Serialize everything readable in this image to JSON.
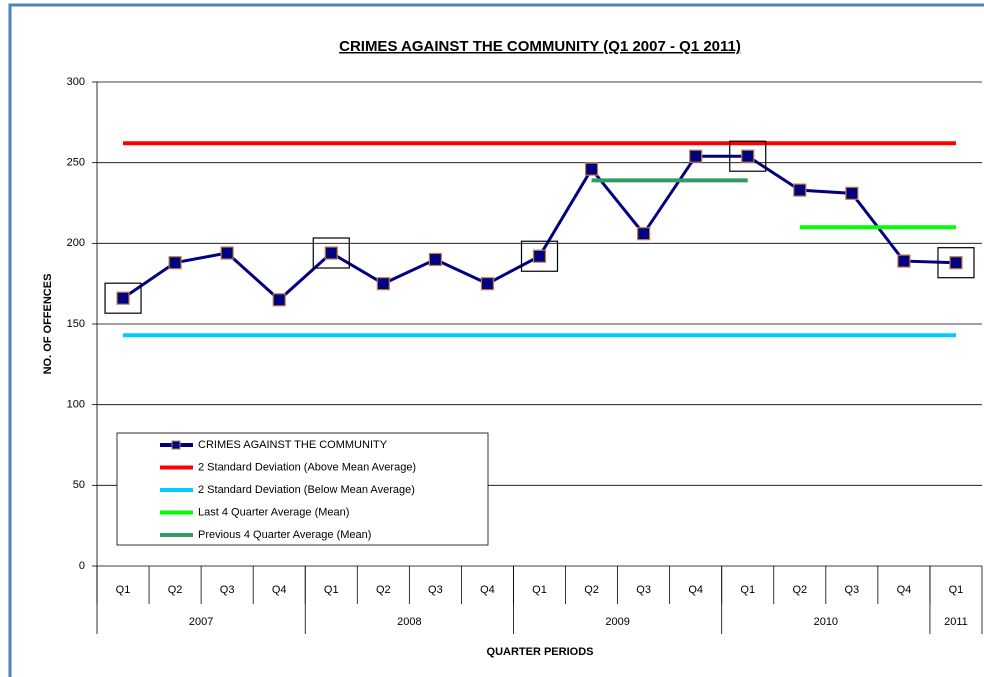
{
  "chart_data": {
    "type": "line",
    "title": "CRIMES AGAINST THE COMMUNITY (Q1 2007 - Q1 2011)",
    "y_label": "NO. OF OFFENCES",
    "x_label": "QUARTER PERIODS",
    "categories": [
      "Q1",
      "Q2",
      "Q3",
      "Q4",
      "Q1",
      "Q2",
      "Q3",
      "Q4",
      "Q1",
      "Q2",
      "Q3",
      "Q4",
      "Q1",
      "Q2",
      "Q3",
      "Q4",
      "Q1"
    ],
    "year_groups": [
      {
        "label": "2007",
        "span": 4
      },
      {
        "label": "2008",
        "span": 4
      },
      {
        "label": "2009",
        "span": 4
      },
      {
        "label": "2010",
        "span": 4
      },
      {
        "label": "2011",
        "span": 1
      }
    ],
    "series": [
      {
        "name": "CRIMES AGAINST THE COMMUNITY",
        "color": "#000080",
        "marker": true,
        "values": [
          166,
          188,
          194,
          165,
          194,
          175,
          190,
          175,
          192,
          246,
          206,
          254,
          254,
          233,
          231,
          189,
          188
        ]
      },
      {
        "name": "2 Standard Deviation (Above Mean Average)",
        "color": "#ff0000",
        "values": [
          262,
          262,
          262,
          262,
          262,
          262,
          262,
          262,
          262,
          262,
          262,
          262,
          262,
          262,
          262,
          262,
          262
        ]
      },
      {
        "name": "2 Standard Deviation (Below Mean Average)",
        "color": "#00ccff",
        "values": [
          143,
          143,
          143,
          143,
          143,
          143,
          143,
          143,
          143,
          143,
          143,
          143,
          143,
          143,
          143,
          143,
          143
        ]
      },
      {
        "name": "Last 4 Quarter Average (Mean)",
        "color": "#00ff00",
        "values": [
          null,
          null,
          null,
          null,
          null,
          null,
          null,
          null,
          null,
          null,
          null,
          null,
          null,
          210,
          210,
          210,
          210
        ]
      },
      {
        "name": "Previous 4 Quarter Average (Mean)",
        "color": "#339966",
        "values": [
          null,
          null,
          null,
          null,
          null,
          null,
          null,
          null,
          null,
          239,
          239,
          239,
          239,
          null,
          null,
          null,
          null
        ]
      }
    ],
    "highlighted": [
      0,
      4,
      8,
      12,
      16
    ],
    "ylim": [
      0,
      300
    ],
    "yticks": [
      0,
      50,
      100,
      150,
      200,
      250,
      300
    ],
    "grid": true
  }
}
